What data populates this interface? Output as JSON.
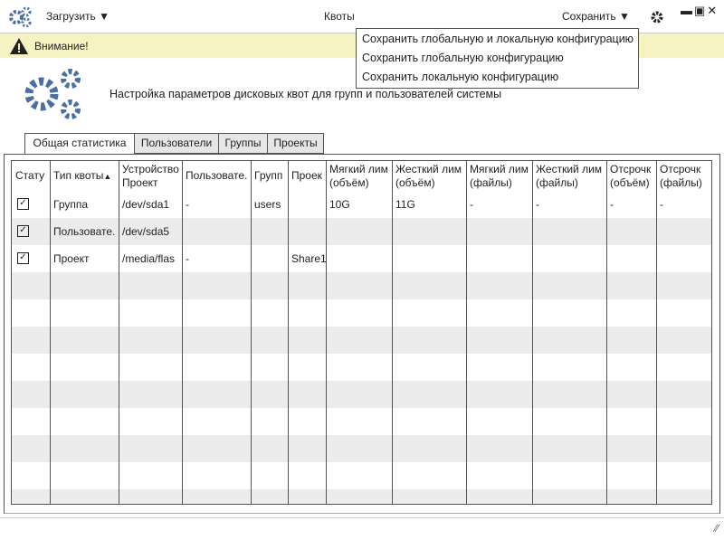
{
  "window": {
    "load_button": "Загрузить",
    "title": "Квоты",
    "save_button": "Сохранить"
  },
  "warning": "Внимание!",
  "save_menu": [
    "Сохранить глобальную и локальную конфигурацию",
    "Сохранить глобальную конфигурацию",
    "Сохранить локальную конфигурацию"
  ],
  "header": "Настройка параметров дисковых квот для групп и пользователей системы",
  "tabs": [
    "Общая статистика",
    "Пользователи",
    "Группы",
    "Проекты"
  ],
  "table": {
    "columns": [
      "Стату",
      "Тип квоты",
      "Устройство\nПроект",
      "Пользовате.",
      "Групп",
      "Проек",
      "Мягкий лим\n(объём)",
      "Жесткий лим\n(объём)",
      "Мягкий лим\n(файлы)",
      "Жесткий лим\n(файлы)",
      "Отсрочк\n(объём)",
      "Отсрочк\n(файлы)"
    ],
    "rows": [
      {
        "checked": true,
        "cells": [
          "Группа",
          "/dev/sda1",
          "-",
          "users",
          null,
          "10G",
          "11G",
          "-",
          "-",
          "-",
          "-"
        ]
      },
      {
        "checked": true,
        "cells": [
          "Пользовате.",
          "/dev/sda5",
          null,
          null,
          null,
          null,
          null,
          null,
          null,
          null,
          null
        ]
      },
      {
        "checked": true,
        "cells": [
          "Проект",
          "/media/flas",
          "-",
          null,
          "Share1",
          null,
          null,
          null,
          null,
          null,
          null
        ]
      }
    ]
  }
}
